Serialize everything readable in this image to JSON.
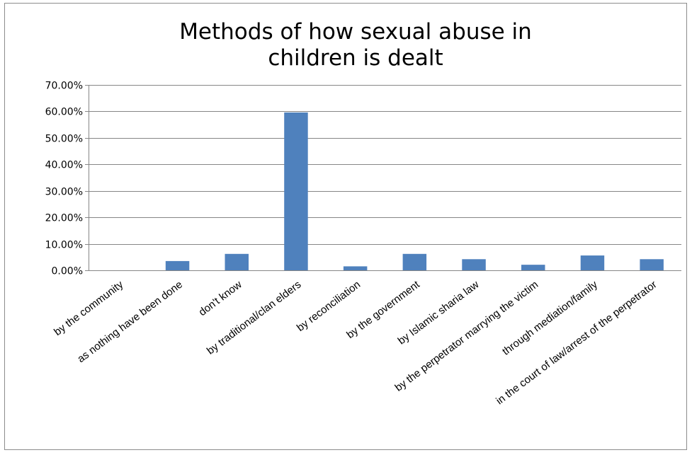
{
  "chart_data": {
    "type": "bar",
    "title_lines": [
      "Methods of how sexual abuse in",
      "children is dealt"
    ],
    "categories": [
      "by the community",
      "as nothing have been done",
      "don't know",
      "by traditional/clan elders",
      "by reconciliation",
      "by the government",
      "by Islamic sharia law",
      "by the perpetrator marrying the victim",
      "through mediation/family",
      "in the court of law/arrest of the perpetrator"
    ],
    "values": [
      0.0,
      3.5,
      6.2,
      59.6,
      1.5,
      6.2,
      4.2,
      2.1,
      5.6,
      4.2
    ],
    "yticks": [
      "0.00%",
      "10.00%",
      "20.00%",
      "30.00%",
      "40.00%",
      "50.00%",
      "60.00%",
      "70.00%"
    ],
    "ylim": [
      0,
      70
    ],
    "grid": true,
    "legend": "none",
    "bar_color": "#4f81bd",
    "grid_color": "#868686"
  }
}
